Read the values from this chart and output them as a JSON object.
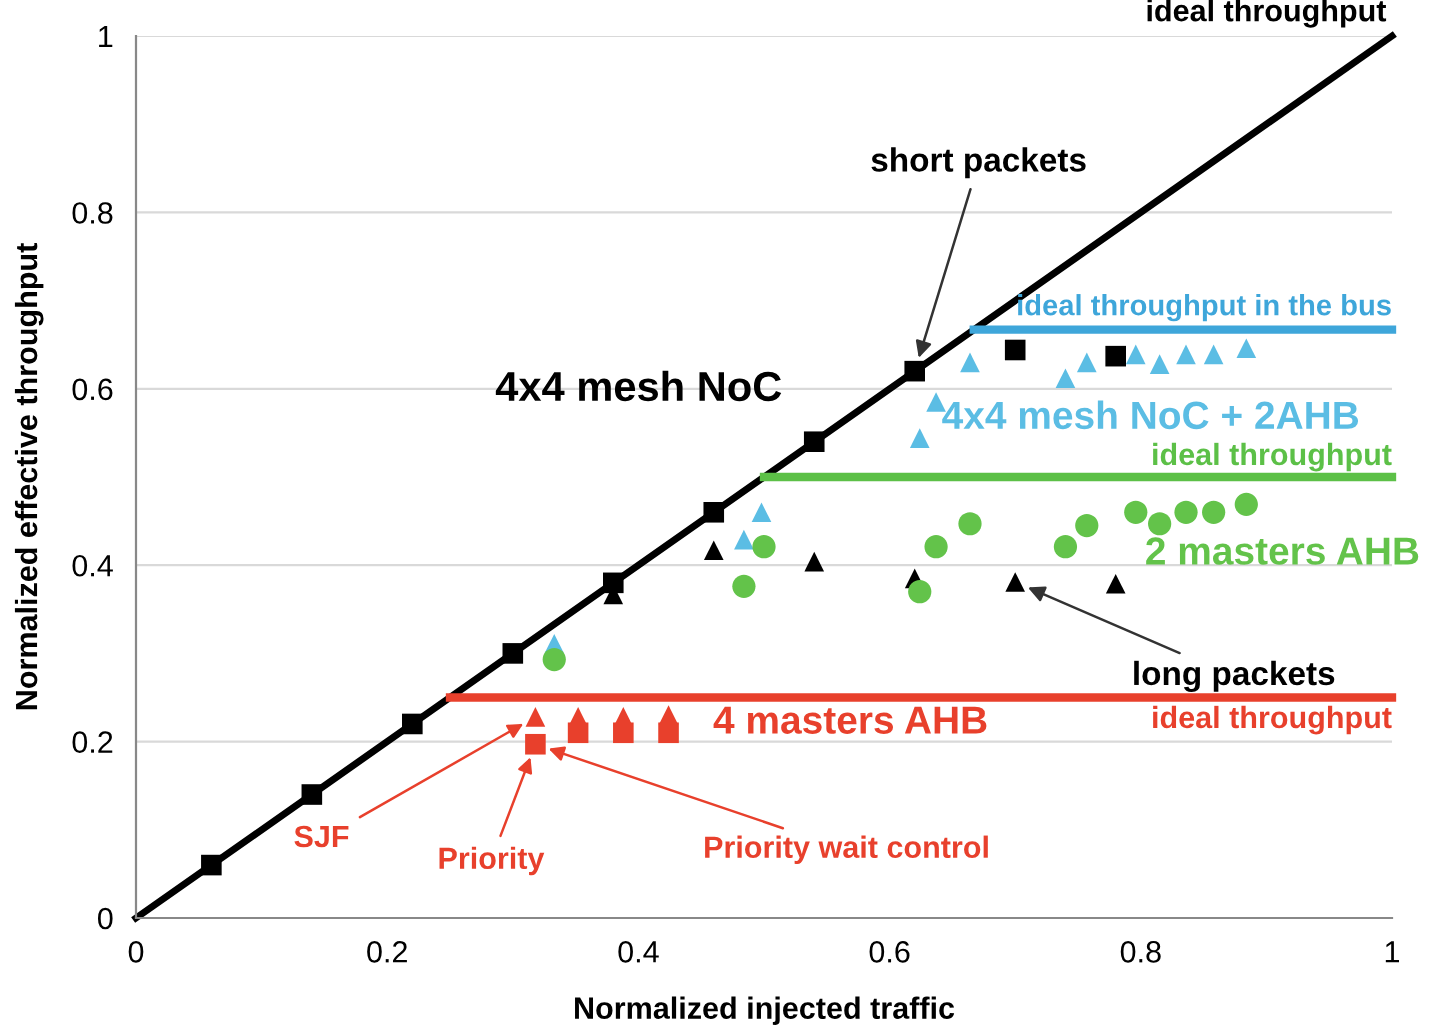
{
  "chart_data": {
    "type": "scatter",
    "xlabel": "Normalized injected traffic",
    "ylabel": "Normalized effective throughput",
    "xlim": [
      0,
      1
    ],
    "ylim": [
      0,
      1
    ],
    "xticks": [
      0,
      0.2,
      0.4,
      0.6,
      0.8,
      1
    ],
    "yticks": [
      0,
      0.2,
      0.4,
      0.6,
      0.8,
      1
    ],
    "grid": "y",
    "series": [
      {
        "type": "line",
        "color": "#000000",
        "x": [
          0,
          1
        ],
        "values": [
          0,
          1
        ]
      },
      {
        "type": "line",
        "color": "#3ea6da",
        "x": [
          0.667,
          1
        ],
        "values": [
          0.667,
          0.667
        ]
      },
      {
        "type": "line",
        "color": "#5cc047",
        "x": [
          0.5,
          1
        ],
        "values": [
          0.5,
          0.5
        ]
      },
      {
        "type": "line",
        "color": "#e8402c",
        "x": [
          0.25,
          1
        ],
        "values": [
          0.25,
          0.25
        ]
      },
      {
        "marker": "square",
        "color": "#000000",
        "x": [
          0.06,
          0.14,
          0.22,
          0.3,
          0.38,
          0.46,
          0.54,
          0.62,
          0.7,
          0.78
        ],
        "values": [
          0.06,
          0.14,
          0.22,
          0.3,
          0.38,
          0.46,
          0.54,
          0.62,
          0.644,
          0.637
        ]
      },
      {
        "marker": "triangle",
        "color": "#000000",
        "x": [
          0.38,
          0.46,
          0.54,
          0.62,
          0.7,
          0.78
        ],
        "values": [
          0.367,
          0.417,
          0.404,
          0.385,
          0.381,
          0.379
        ]
      },
      {
        "marker": "triangle",
        "color": "#5bbde4",
        "x": [
          0.333,
          0.484,
          0.498,
          0.624,
          0.637,
          0.664,
          0.74,
          0.757,
          0.796,
          0.815,
          0.836,
          0.858,
          0.884
        ],
        "values": [
          0.311,
          0.429,
          0.46,
          0.544,
          0.585,
          0.63,
          0.612,
          0.63,
          0.639,
          0.628,
          0.639,
          0.639,
          0.646
        ]
      },
      {
        "marker": "circle",
        "color": "#63c34a",
        "x": [
          0.333,
          0.484,
          0.5,
          0.624,
          0.637,
          0.664,
          0.74,
          0.757,
          0.796,
          0.815,
          0.836,
          0.858,
          0.884
        ],
        "values": [
          0.293,
          0.376,
          0.421,
          0.37,
          0.421,
          0.447,
          0.421,
          0.445,
          0.46,
          0.447,
          0.46,
          0.46,
          0.469
        ]
      },
      {
        "marker": "square",
        "color": "#e8402c",
        "x": [
          0.318,
          0.352,
          0.388,
          0.424
        ],
        "values": [
          0.197,
          0.21,
          0.21,
          0.21
        ]
      },
      {
        "marker": "triangle",
        "color": "#e8402c",
        "x": [
          0.318,
          0.352,
          0.388,
          0.424
        ],
        "values": [
          0.228,
          0.228,
          0.228,
          0.23
        ]
      }
    ],
    "annotations": [
      {
        "text": "ideal throughput",
        "x": 1,
        "y": 1
      },
      {
        "text": "short packets",
        "x": 0.62,
        "y": 0.62
      },
      {
        "text": "4x4 mesh NoC",
        "x": 0.46,
        "y": 0.46
      },
      {
        "text": "ideal throughput in the bus",
        "x": 1,
        "y": 0.667
      },
      {
        "text": "4x4 mesh NoC + 2AHB",
        "x": 0.637,
        "y": 0.585
      },
      {
        "text": "ideal throughput",
        "x": 1,
        "y": 0.5
      },
      {
        "text": "2 masters AHB",
        "x": 0.884,
        "y": 0.469
      },
      {
        "text": "long packets",
        "x": 0.7,
        "y": 0.381
      },
      {
        "text": "4 masters AHB",
        "x": 0.424,
        "y": 0.23
      },
      {
        "text": "ideal throughput",
        "x": 1,
        "y": 0.25
      },
      {
        "text": "SJF",
        "x": 0.318,
        "y": 0.228
      },
      {
        "text": "Priority",
        "x": 0.318,
        "y": 0.197
      },
      {
        "text": "Priority wait control",
        "x": 0.318,
        "y": 0.197
      }
    ]
  }
}
